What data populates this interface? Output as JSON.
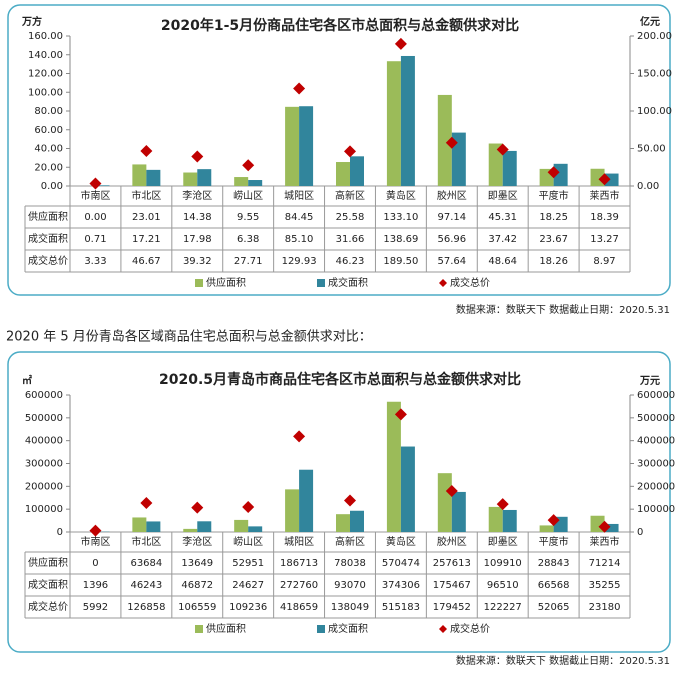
{
  "heading": "2020 年 5 月份青岛各区域商品住宅总面积与总金额供求对比：",
  "chart_data": [
    {
      "type": "bar",
      "title": "2020年1-5月份商品住宅各区市总面积与总金额供求对比",
      "y_label": "万方",
      "y2_label": "亿元",
      "source": "数据来源：数联天下    数据截止日期：2020.5.31",
      "categories": [
        "市南区",
        "市北区",
        "李沧区",
        "崂山区",
        "城阳区",
        "高新区",
        "黄岛区",
        "胶州区",
        "即墨区",
        "平度市",
        "莱西市"
      ],
      "series": [
        {
          "name": "供应面积",
          "color": "#9bbb59",
          "values": [
            0,
            23.01,
            14.38,
            9.55,
            84.45,
            25.58,
            133.1,
            97.14,
            45.31,
            18.25,
            18.39
          ],
          "value_labels": [
            "0.00",
            "23.01",
            "14.38",
            "9.55",
            "84.45",
            "25.58",
            "133.10",
            "97.14",
            "45.31",
            "18.25",
            "18.39"
          ]
        },
        {
          "name": "成交面积",
          "color": "#31859c",
          "values": [
            0.71,
            17.21,
            17.98,
            6.38,
            85.1,
            31.66,
            138.69,
            56.96,
            37.42,
            23.67,
            13.27
          ],
          "value_labels": [
            "0.71",
            "17.21",
            "17.98",
            "6.38",
            "85.10",
            "31.66",
            "138.69",
            "56.96",
            "37.42",
            "23.67",
            "13.27"
          ]
        },
        {
          "name": "成交总价",
          "color": "#c00000",
          "axis": "y2",
          "values": [
            3.33,
            46.67,
            39.32,
            27.71,
            129.93,
            46.23,
            189.5,
            57.64,
            48.64,
            18.26,
            8.97
          ],
          "value_labels": [
            "3.33",
            "46.67",
            "39.32",
            "27.71",
            "129.93",
            "46.23",
            "189.50",
            "57.64",
            "48.64",
            "18.26",
            "8.97"
          ]
        }
      ],
      "ylim": [
        0,
        160
      ],
      "yticks": [
        {
          "value": 0,
          "label": "0.00"
        },
        {
          "value": 20,
          "label": "20.00"
        },
        {
          "value": 40,
          "label": "40.00"
        },
        {
          "value": 60,
          "label": "60.00"
        },
        {
          "value": 80,
          "label": "80.00"
        },
        {
          "value": 100,
          "label": "100.00"
        },
        {
          "value": 120,
          "label": "120.00"
        },
        {
          "value": 140,
          "label": "140.00"
        },
        {
          "value": 160,
          "label": "160.00"
        }
      ],
      "y2lim": [
        0,
        200
      ],
      "y2ticks": [
        {
          "value": 0,
          "label": "0.00"
        },
        {
          "value": 50,
          "label": "50.00"
        },
        {
          "value": 100,
          "label": "100.00"
        },
        {
          "value": 150,
          "label": "150.00"
        },
        {
          "value": 200,
          "label": "200.00"
        }
      ],
      "grid": false
    },
    {
      "type": "bar",
      "title": "2020.5月青岛市商品住宅各区市总面积与总金额供求对比",
      "y_label": "㎡",
      "y2_label": "万元",
      "source": "数据来源：数联天下    数据截止日期：2020.5.31",
      "categories": [
        "市南区",
        "市北区",
        "李沧区",
        "崂山区",
        "城阳区",
        "高新区",
        "黄岛区",
        "胶州区",
        "即墨区",
        "平度市",
        "莱西市"
      ],
      "series": [
        {
          "name": "供应面积",
          "color": "#9bbb59",
          "values": [
            0,
            63684,
            13649,
            52951,
            186713,
            78038,
            570474,
            257613,
            109910,
            28843,
            71214
          ]
        },
        {
          "name": "成交面积",
          "color": "#31859c",
          "values": [
            1396,
            46243,
            46872,
            24627,
            272760,
            93070,
            374306,
            175467,
            96510,
            66568,
            35255
          ]
        },
        {
          "name": "成交总价",
          "color": "#c00000",
          "axis": "y2",
          "values": [
            5992,
            126858,
            106559,
            109236,
            418659,
            138049,
            515183,
            179452,
            122227,
            52065,
            23180
          ]
        }
      ],
      "ylim": [
        0,
        600000
      ],
      "yticks": [
        0,
        100000,
        200000,
        300000,
        400000,
        500000,
        600000
      ],
      "y2lim": [
        0,
        600000
      ],
      "y2ticks": [
        0,
        100000,
        200000,
        300000,
        400000,
        500000,
        600000
      ],
      "grid": false
    }
  ]
}
